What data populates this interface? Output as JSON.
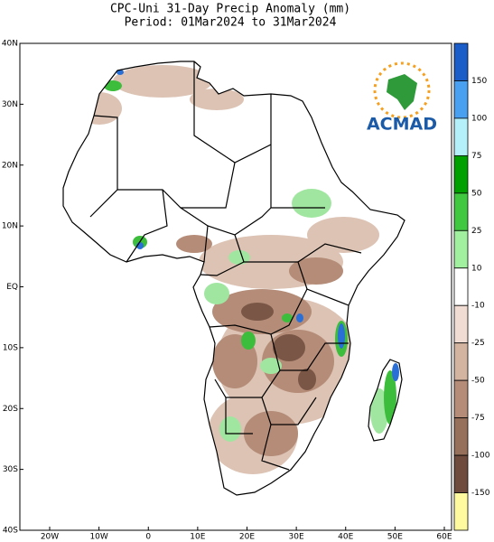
{
  "header": {
    "title": "CPC-Uni 31-Day Precip Anomaly (mm)",
    "period": "Period: 01Mar2024 to 31Mar2024"
  },
  "map": {
    "lat_labels": [
      "40N",
      "30N",
      "20N",
      "10N",
      "EQ",
      "10S",
      "20S",
      "30S",
      "40S"
    ],
    "lon_labels": [
      "20W",
      "10W",
      "0",
      "10E",
      "20E",
      "30E",
      "40E",
      "50E",
      "60E"
    ]
  },
  "legend": {
    "labels": [
      "150",
      "100",
      "75",
      "50",
      "25",
      "10",
      "-10",
      "-25",
      "-50",
      "-75",
      "-100",
      "-150"
    ]
  },
  "logo": {
    "text": "ACMAD"
  }
}
